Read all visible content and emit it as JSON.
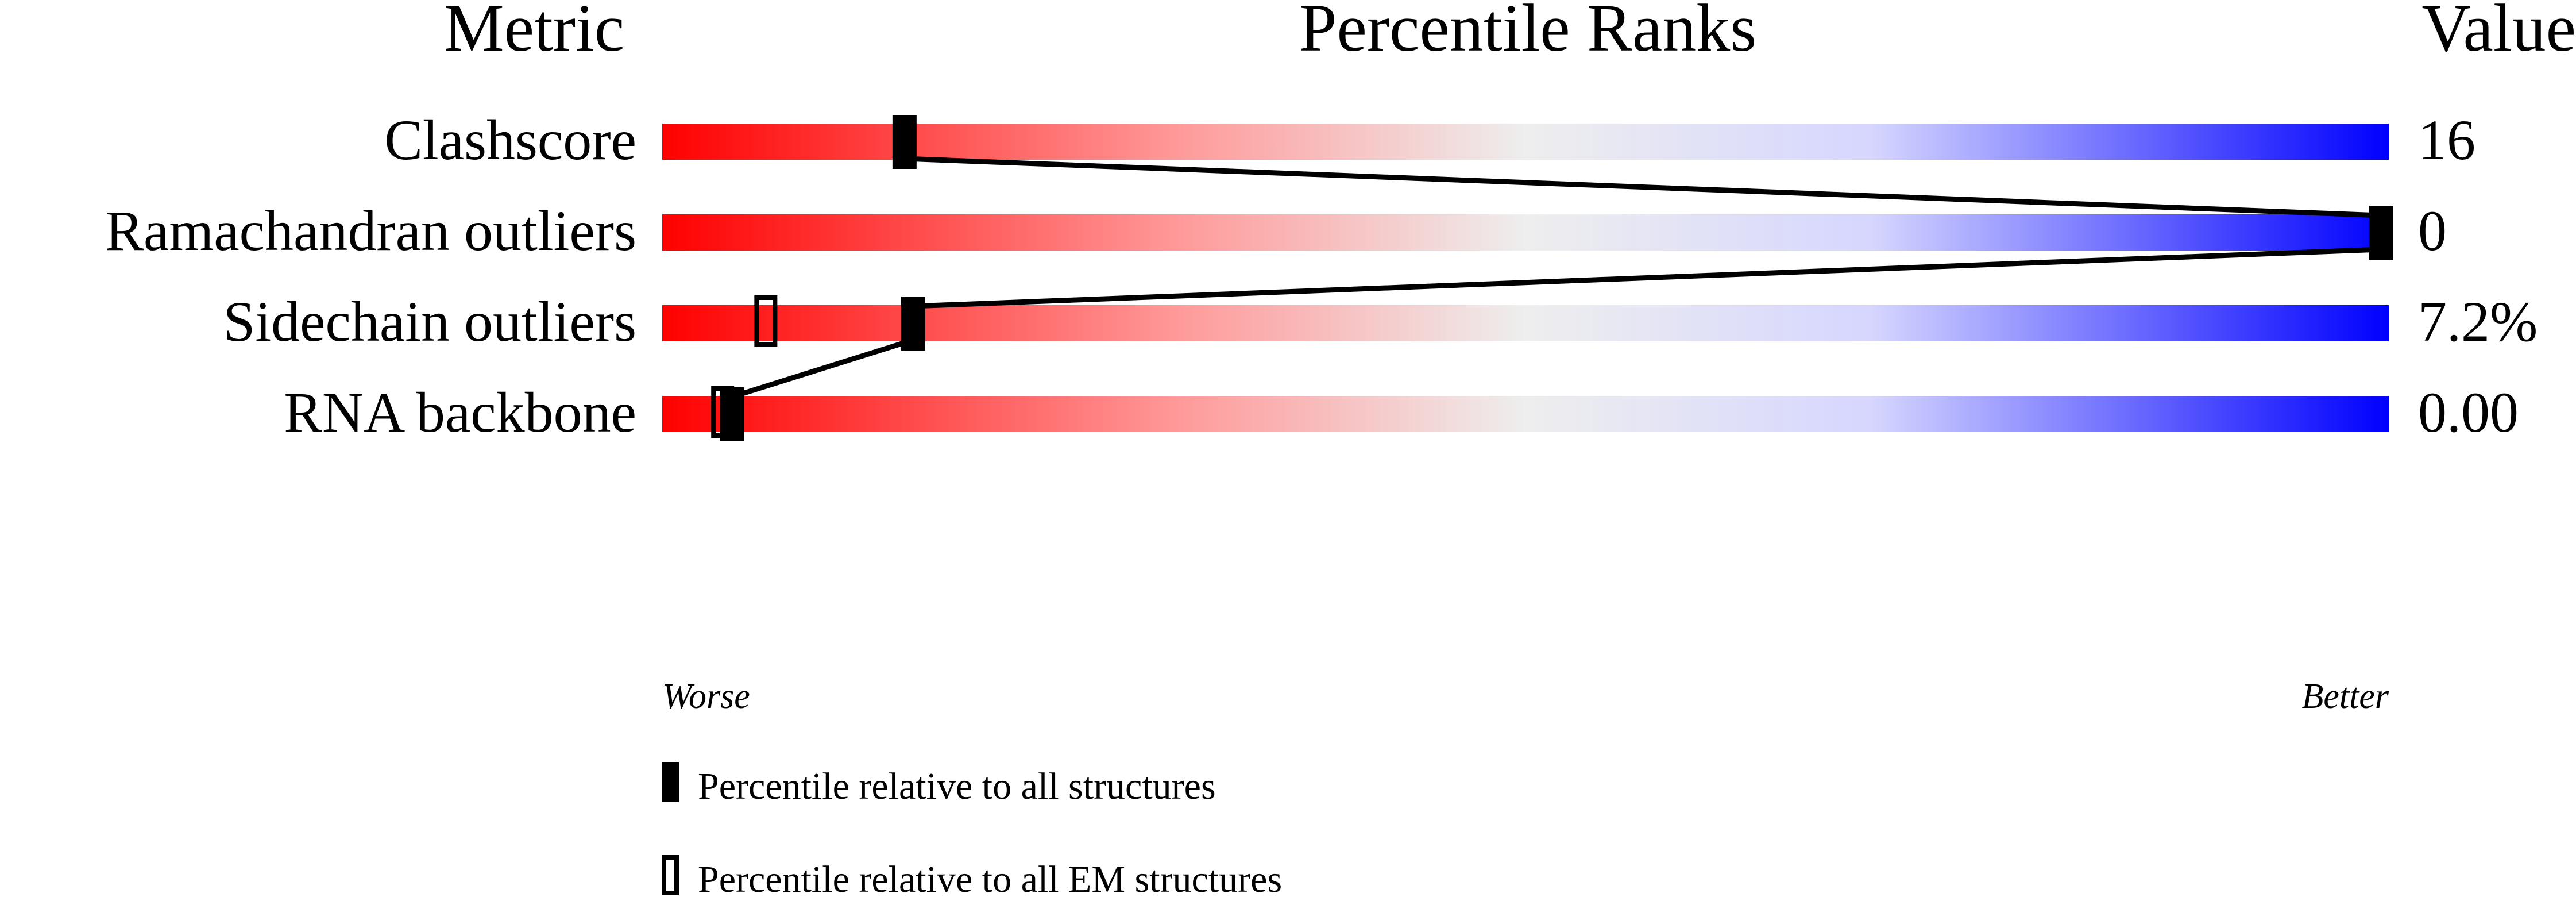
{
  "chart_data": {
    "type": "percentile-slider",
    "headers": {
      "metric": "Metric",
      "ranks": "Percentile Ranks",
      "value": "Value"
    },
    "axis": {
      "left_label": "Worse",
      "right_label": "Better",
      "range": [
        0,
        100
      ]
    },
    "colors": {
      "worse": "#ff0000",
      "middle": "#eeeeee",
      "better": "#0000ff",
      "marker": "#000000"
    },
    "metrics": [
      {
        "name": "Clashscore",
        "value": "16",
        "percentile_all": 14,
        "percentile_em": null
      },
      {
        "name": "Ramachandran outliers",
        "value": "0",
        "percentile_all": 100,
        "percentile_em": null
      },
      {
        "name": "Sidechain outliers",
        "value": "7.2%",
        "percentile_all": 14.5,
        "percentile_em": 6
      },
      {
        "name": "RNA backbone",
        "value": "0.00",
        "percentile_all": 4,
        "percentile_em": 3.5
      }
    ],
    "legend": [
      {
        "marker": "filled",
        "label": "Percentile relative to all structures"
      },
      {
        "marker": "open",
        "label": "Percentile relative to all EM structures"
      }
    ]
  }
}
